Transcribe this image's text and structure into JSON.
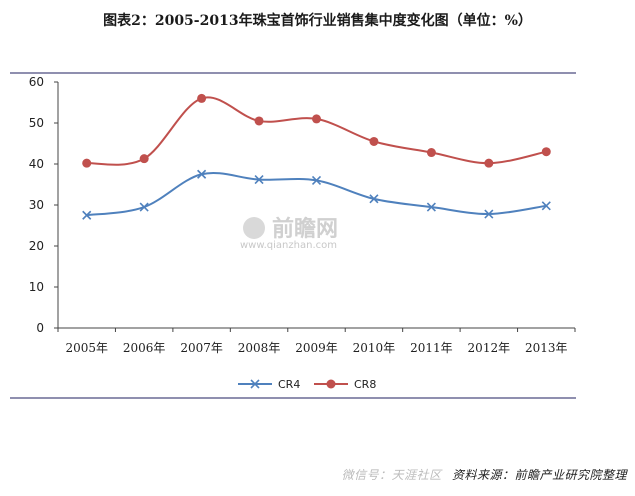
{
  "title": "图表2：2005-2013年珠宝首饰行业销售集中度变化图（单位：%）",
  "watermark": {
    "text": "前瞻网",
    "url": "www.qianzhan.com"
  },
  "source": "资料来源：前瞻产业研究院整理",
  "overlay": "微信号：天涯社区",
  "colors": {
    "CR4": "#4f81bd",
    "CR8": "#c0504d",
    "axis": "#1f1f5f"
  },
  "chart_data": {
    "type": "line",
    "x": [
      "2005年",
      "2006年",
      "2007年",
      "2008年",
      "2009年",
      "2010年",
      "2011年",
      "2012年",
      "2013年"
    ],
    "ylim": [
      0,
      60
    ],
    "yticks": [
      0,
      10,
      20,
      30,
      40,
      50,
      60
    ],
    "grid": false,
    "legend_position": "bottom",
    "series": [
      {
        "name": "CR4",
        "marker": "x",
        "values": [
          27.5,
          29.5,
          37.5,
          36.2,
          36.0,
          31.5,
          29.5,
          27.8,
          29.8
        ]
      },
      {
        "name": "CR8",
        "marker": "circle",
        "values": [
          40.2,
          41.3,
          56.0,
          50.5,
          51.0,
          45.5,
          42.8,
          40.2,
          43.0
        ]
      }
    ]
  }
}
